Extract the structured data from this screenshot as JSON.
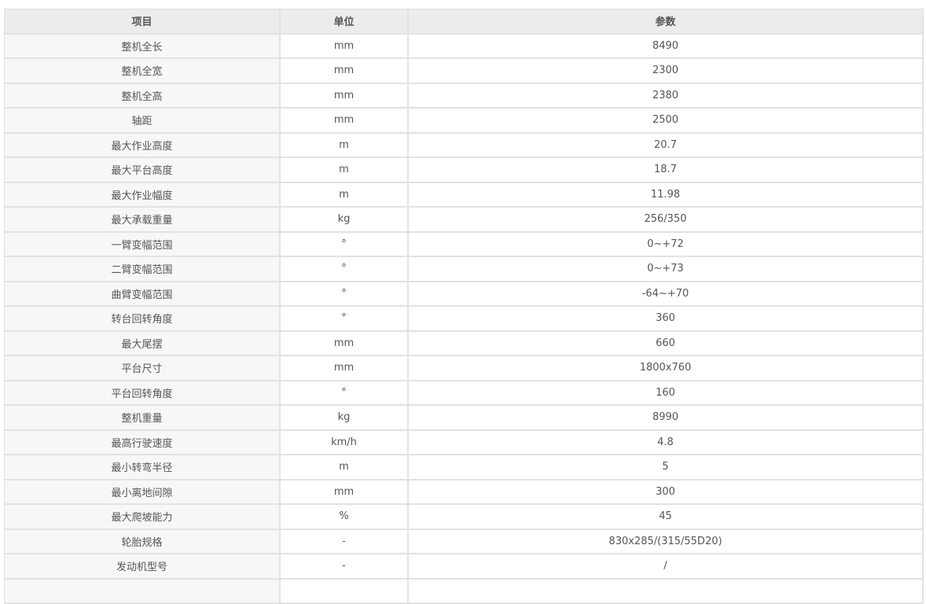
{
  "headers": [
    "项目",
    "单位",
    "参数"
  ],
  "rows": [
    [
      "整机全长",
      "mm",
      "8490"
    ],
    [
      "整机全宽",
      "mm",
      "2300"
    ],
    [
      "整机全高",
      "mm",
      "2380"
    ],
    [
      "轴距",
      "mm",
      "2500"
    ],
    [
      "最大作业高度",
      "m",
      "20.7"
    ],
    [
      "最大平台高度",
      "m",
      "18.7"
    ],
    [
      "最大作业幅度",
      "m",
      "11.98"
    ],
    [
      "最大承载重量",
      "kg",
      "256/350"
    ],
    [
      "一臂变幅范围",
      "°",
      "0~+72"
    ],
    [
      "二臂变幅范围",
      "°",
      "0~+73"
    ],
    [
      "曲臂变幅范围",
      "°",
      "-64~+70"
    ],
    [
      "转台回转角度",
      "°",
      "360"
    ],
    [
      "最大尾摆",
      "mm",
      "660"
    ],
    [
      "平台尺寸",
      "mm",
      "1800x760"
    ],
    [
      "平台回转角度",
      "°",
      "160"
    ],
    [
      "整机重量",
      "kg",
      "8990"
    ],
    [
      "最高行驶速度",
      "km/h",
      "4.8"
    ],
    [
      "最小转弯半径",
      "m",
      "5"
    ],
    [
      "最小离地间隙",
      "mm",
      "300"
    ],
    [
      "最大爬坡能力",
      "%",
      "45"
    ],
    [
      "轮胎规格",
      "-",
      "830x285/(315/55D20)"
    ],
    [
      "发动机型号",
      "-",
      "/"
    ]
  ]
}
